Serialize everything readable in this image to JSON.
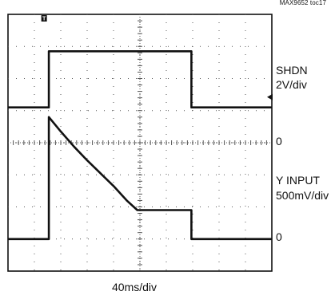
{
  "figure_id": "MAX9652 toc17",
  "trigger_marker": "T",
  "labels": {
    "ch1_name": "SHDN",
    "ch1_scale": "2V/div",
    "zero_a": "0",
    "ch2_name": "Y INPUT",
    "ch2_scale": "500mV/div",
    "zero_b": "0",
    "time_scale": "40ms/div"
  },
  "chart_data": {
    "type": "line",
    "title": "",
    "xlabel": "40ms/div",
    "x_unit": "div",
    "xlim": [
      0,
      10
    ],
    "y_unit": "div",
    "ylim": [
      -4,
      4
    ],
    "grid": true,
    "colors": {
      "trace": "#111111",
      "grid": "#555555",
      "background": "#ffffff"
    },
    "series": [
      {
        "name": "SHDN",
        "scale": "2V/div",
        "points": [
          [
            0,
            1.1
          ],
          [
            1.55,
            1.1
          ],
          [
            1.55,
            2.85
          ],
          [
            6.95,
            2.85
          ],
          [
            6.95,
            1.1
          ],
          [
            10,
            1.1
          ]
        ]
      },
      {
        "name": "Y INPUT",
        "scale": "500mV/div",
        "points": [
          [
            0,
            -3.0
          ],
          [
            1.55,
            -3.0
          ],
          [
            1.55,
            0.8
          ],
          [
            2.0,
            0.35
          ],
          [
            2.5,
            -0.12
          ],
          [
            3.0,
            -0.55
          ],
          [
            3.5,
            -0.95
          ],
          [
            4.0,
            -1.35
          ],
          [
            4.5,
            -1.8
          ],
          [
            4.9,
            -2.1
          ],
          [
            6.95,
            -2.1
          ],
          [
            6.95,
            -3.0
          ],
          [
            10,
            -3.0
          ]
        ]
      }
    ]
  }
}
